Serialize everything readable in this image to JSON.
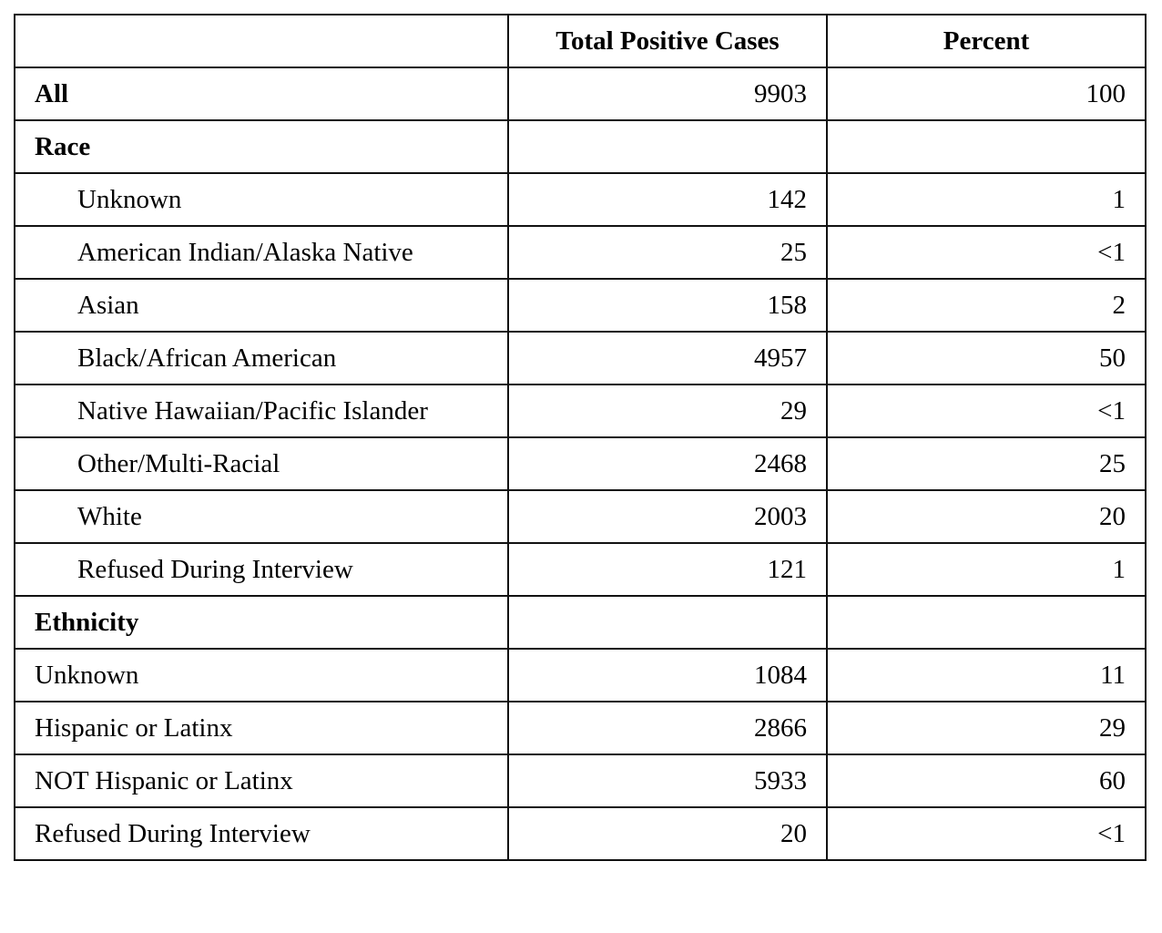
{
  "table": {
    "columns": [
      "Total Positive Cases",
      "Percent"
    ],
    "total": {
      "label": "All",
      "cases": 9903,
      "percent": 100
    },
    "sections": [
      {
        "title": "Race",
        "indent": true,
        "rows": [
          {
            "label": "Unknown",
            "cases": 142,
            "percent": 1
          },
          {
            "label": "American Indian/Alaska Native",
            "cases": 25,
            "percent": "<1"
          },
          {
            "label": "Asian",
            "cases": 158,
            "percent": 2
          },
          {
            "label": "Black/African American",
            "cases": 4957,
            "percent": 50
          },
          {
            "label": "Native Hawaiian/Pacific Islander",
            "cases": 29,
            "percent": "<1"
          },
          {
            "label": "Other/Multi-Racial",
            "cases": 2468,
            "percent": 25
          },
          {
            "label": "White",
            "cases": 2003,
            "percent": 20
          },
          {
            "label": "Refused During Interview",
            "cases": 121,
            "percent": 1
          }
        ]
      },
      {
        "title": "Ethnicity",
        "indent": false,
        "rows": [
          {
            "label": "Unknown",
            "cases": 1084,
            "percent": 11
          },
          {
            "label": "Hispanic or Latinx",
            "cases": 2866,
            "percent": 29
          },
          {
            "label": "NOT Hispanic or Latinx",
            "cases": 5933,
            "percent": 60
          },
          {
            "label": "Refused During Interview",
            "cases": 20,
            "percent": "<1"
          }
        ]
      }
    ]
  }
}
